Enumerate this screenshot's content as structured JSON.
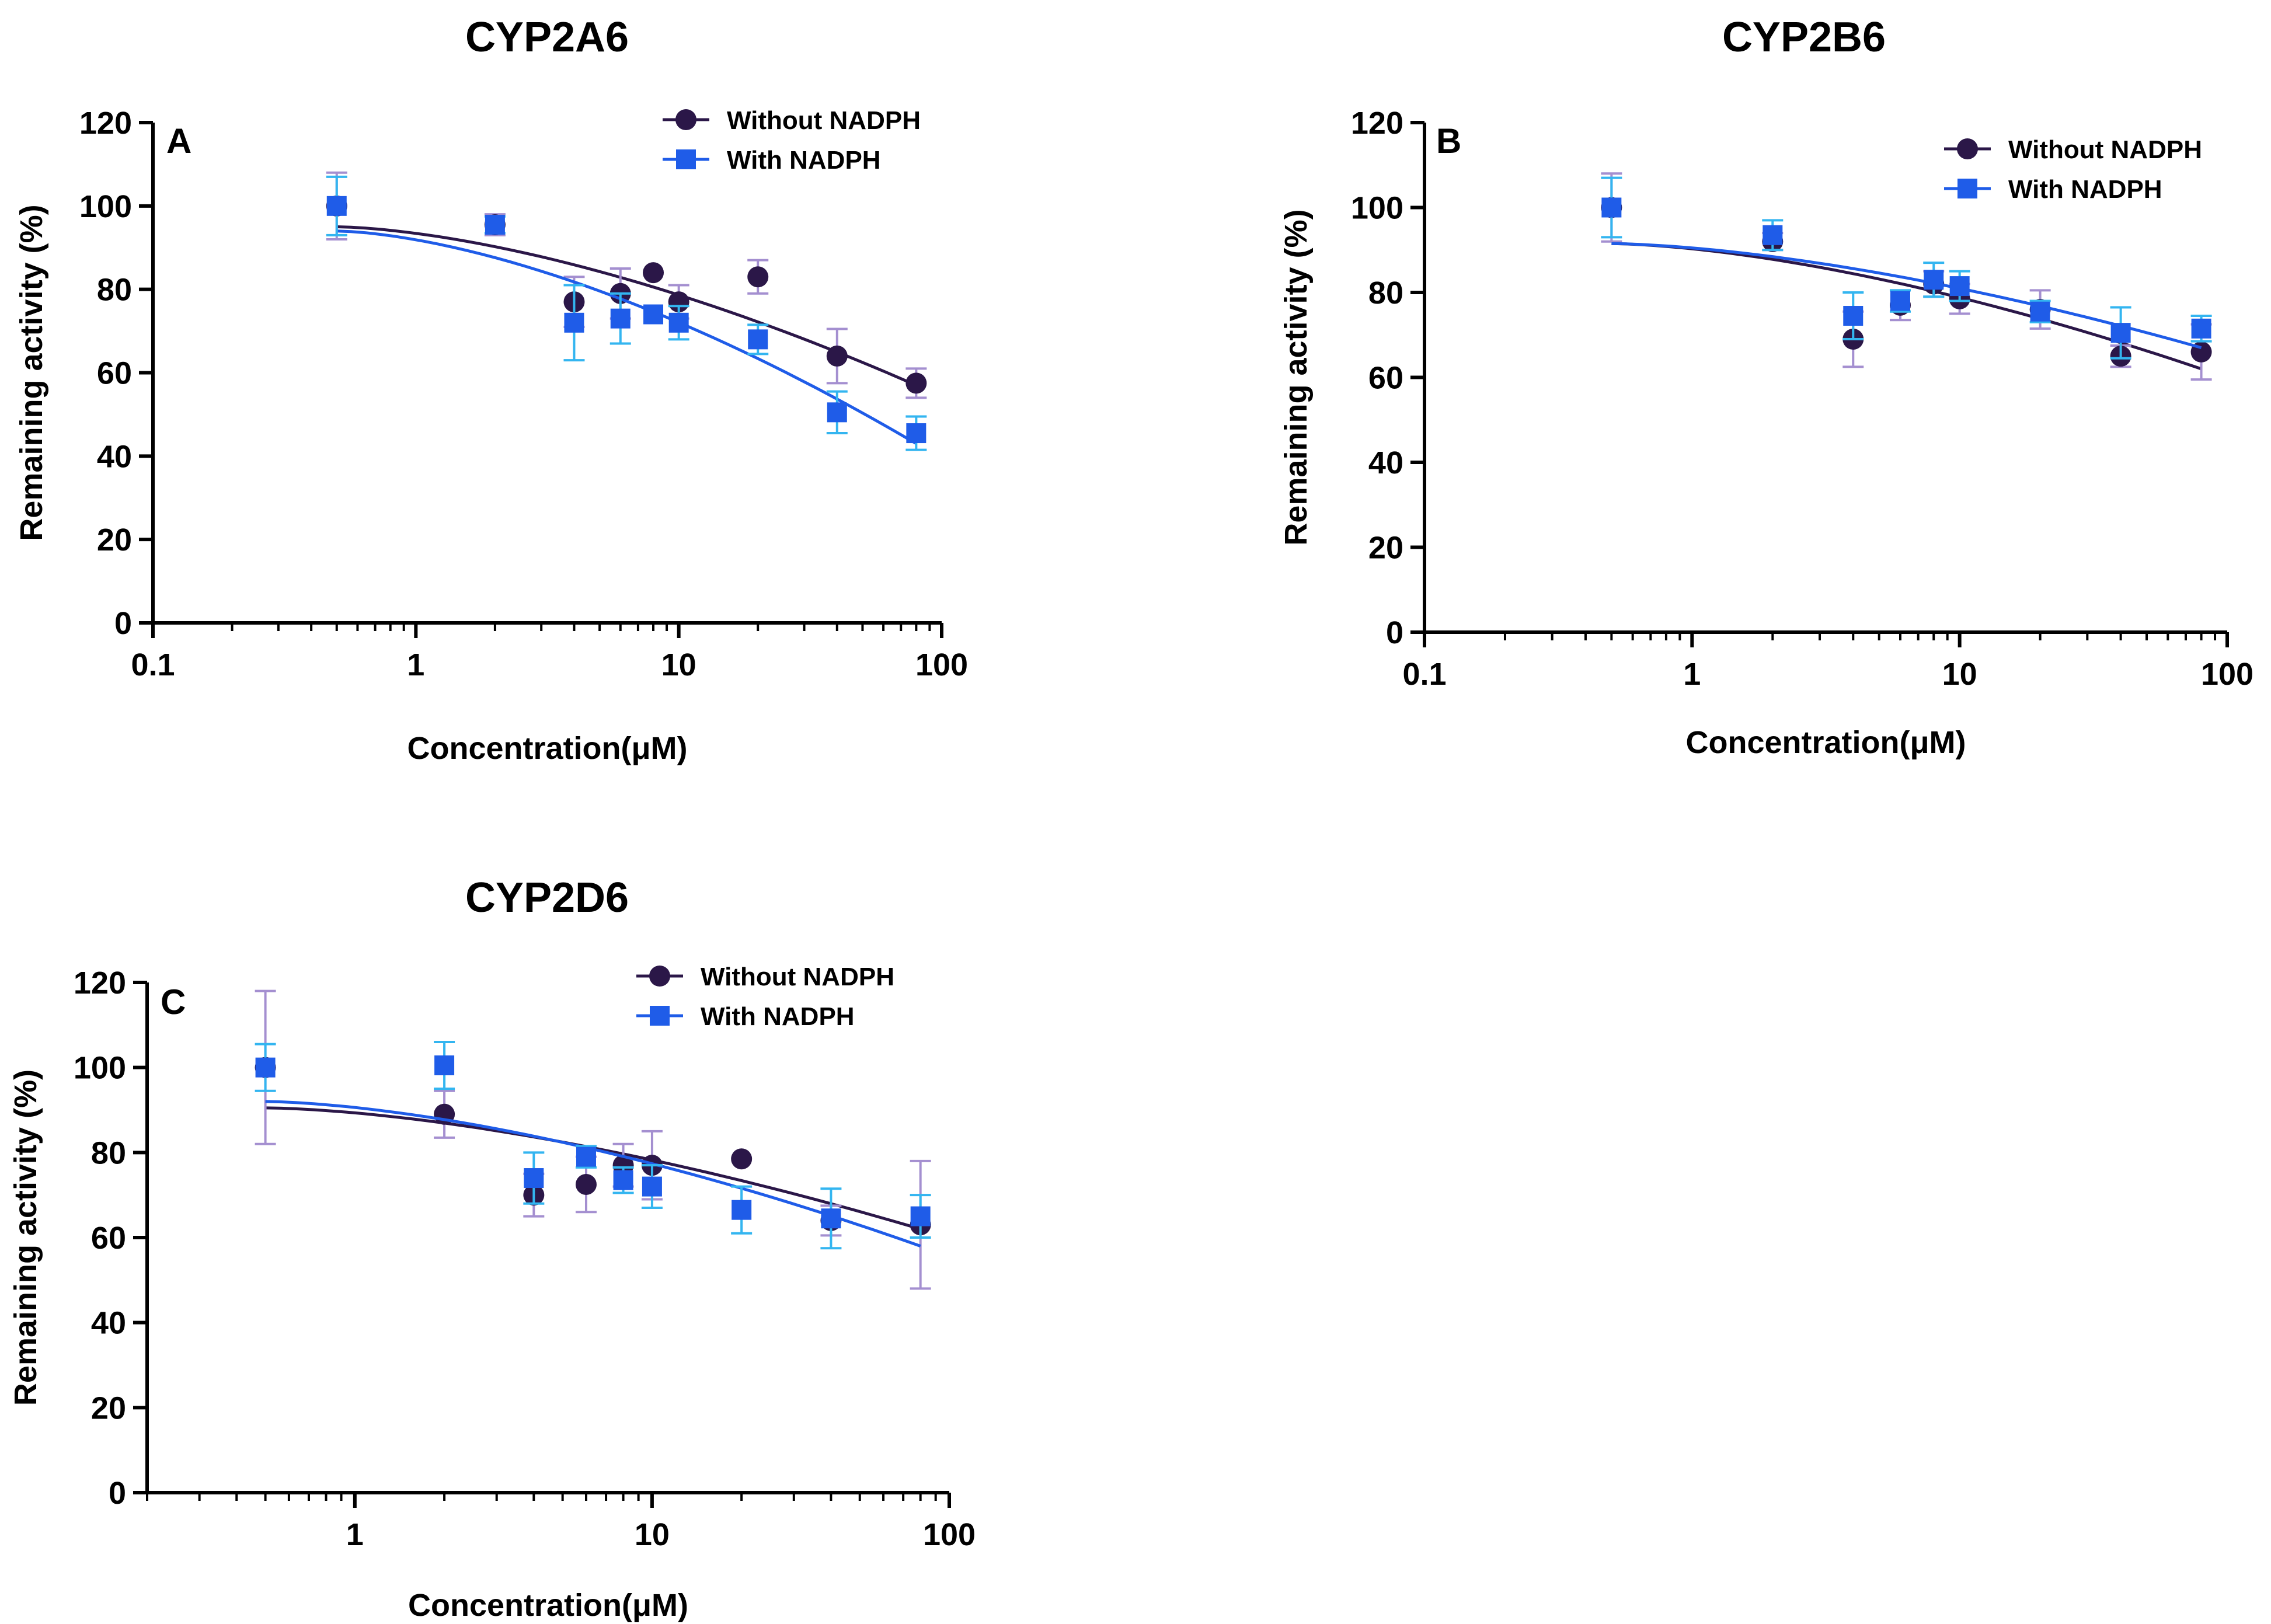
{
  "figure": {
    "legend": {
      "without_label": "Without NADPH",
      "with_label": "With NADPH"
    },
    "colors": {
      "without": "#2b1748",
      "with": "#1f5ce8",
      "without_err": "#a48fd0",
      "with_err": "#33b5f0",
      "axis": "#000000"
    }
  },
  "chart_data": [
    {
      "type": "scatter",
      "panel": "A",
      "title": "CYP2A6",
      "xlabel": "Concentration(μM)",
      "ylabel": "Remaining activity (%)",
      "xscale": "log",
      "xlim": [
        0.1,
        100
      ],
      "ylim": [
        0,
        120
      ],
      "xticks": [
        0.1,
        1,
        10,
        100
      ],
      "xtick_labels": [
        "0.1",
        "1",
        "10",
        "100"
      ],
      "yticks": [
        0,
        20,
        40,
        60,
        80,
        100,
        120
      ],
      "ytick_labels": [
        "0",
        "20",
        "40",
        "60",
        "80",
        "100",
        "120"
      ],
      "legend_position": "top-right",
      "series": [
        {
          "name": "Without NADPH",
          "marker": "circle",
          "x": [
            0.5,
            2,
            4,
            6,
            8,
            10,
            20,
            40,
            80
          ],
          "y": [
            100,
            95.5,
            77,
            79,
            84,
            77,
            83,
            64,
            57.5
          ],
          "err": [
            8,
            2.5,
            6,
            6,
            0,
            4,
            4,
            6.5,
            3.5
          ],
          "fit": [
            95,
            57
          ]
        },
        {
          "name": "With NADPH",
          "marker": "square",
          "x": [
            0.5,
            2,
            4,
            6,
            8,
            10,
            20,
            40,
            80
          ],
          "y": [
            100,
            95.5,
            72,
            73,
            74,
            72,
            68,
            50.5,
            45.5
          ],
          "err": [
            7,
            2,
            9,
            6,
            0,
            4,
            3.5,
            5,
            4
          ],
          "fit": [
            94,
            43
          ]
        }
      ]
    },
    {
      "type": "scatter",
      "panel": "B",
      "title": "CYP2B6",
      "xlabel": "Concentration(μM)",
      "ylabel": "Remaining activity (%)",
      "xscale": "log",
      "xlim": [
        0.1,
        100
      ],
      "ylim": [
        0,
        120
      ],
      "xticks": [
        0.1,
        1,
        10,
        100
      ],
      "xtick_labels": [
        "0.1",
        "1",
        "10",
        "100"
      ],
      "yticks": [
        0,
        20,
        40,
        60,
        80,
        100,
        120
      ],
      "ytick_labels": [
        "0",
        "20",
        "40",
        "60",
        "80",
        "100",
        "120"
      ],
      "legend_position": "top-right",
      "series": [
        {
          "name": "Without NADPH",
          "marker": "circle",
          "x": [
            0.5,
            2,
            4,
            6,
            8,
            10,
            20,
            40,
            80
          ],
          "y": [
            100,
            92,
            69,
            77,
            82,
            78.5,
            76,
            65,
            66
          ],
          "err": [
            8,
            2,
            6.5,
            3.5,
            3,
            3.5,
            4.5,
            2.5,
            6.5
          ],
          "fit": [
            91.5,
            62
          ]
        },
        {
          "name": "With NADPH",
          "marker": "square",
          "x": [
            0.5,
            2,
            4,
            6,
            8,
            10,
            20,
            40,
            80
          ],
          "y": [
            100,
            93.5,
            74.5,
            78,
            83,
            81.5,
            75.5,
            70.5,
            71.5
          ],
          "err": [
            7,
            3.5,
            5.5,
            2.5,
            4,
            3.5,
            2.5,
            6,
            3
          ],
          "fit": [
            91.5,
            67
          ]
        }
      ]
    },
    {
      "type": "scatter",
      "panel": "C",
      "title": "CYP2D6",
      "xlabel": "Concentration(μM)",
      "ylabel": "Remaining activity (%)",
      "xscale": "log",
      "xlim": [
        0.2,
        100
      ],
      "ylim": [
        0,
        120
      ],
      "xticks": [
        1,
        10,
        100
      ],
      "xtick_labels": [
        "1",
        "10",
        "100"
      ],
      "yticks": [
        0,
        20,
        40,
        60,
        80,
        100,
        120
      ],
      "ytick_labels": [
        "0",
        "20",
        "40",
        "60",
        "80",
        "100",
        "120"
      ],
      "legend_position": "top-right",
      "series": [
        {
          "name": "Without NADPH",
          "marker": "circle",
          "x": [
            0.5,
            2,
            4,
            6,
            8,
            10,
            20,
            40,
            80
          ],
          "y": [
            100,
            89,
            70,
            72.5,
            77,
            77,
            78.5,
            64,
            63
          ],
          "err": [
            18,
            5.5,
            5,
            6.5,
            5,
            8,
            0,
            3.5,
            15
          ],
          "fit": [
            90.5,
            62
          ]
        },
        {
          "name": "With NADPH",
          "marker": "square",
          "x": [
            0.5,
            2,
            4,
            6,
            8,
            10,
            20,
            40,
            80
          ],
          "y": [
            100,
            100.5,
            74,
            79,
            73.5,
            72,
            66.5,
            64.5,
            65
          ],
          "err": [
            5.5,
            5.5,
            6,
            2.5,
            3,
            5,
            5.5,
            7,
            5
          ],
          "fit": [
            92,
            58
          ]
        }
      ]
    }
  ]
}
